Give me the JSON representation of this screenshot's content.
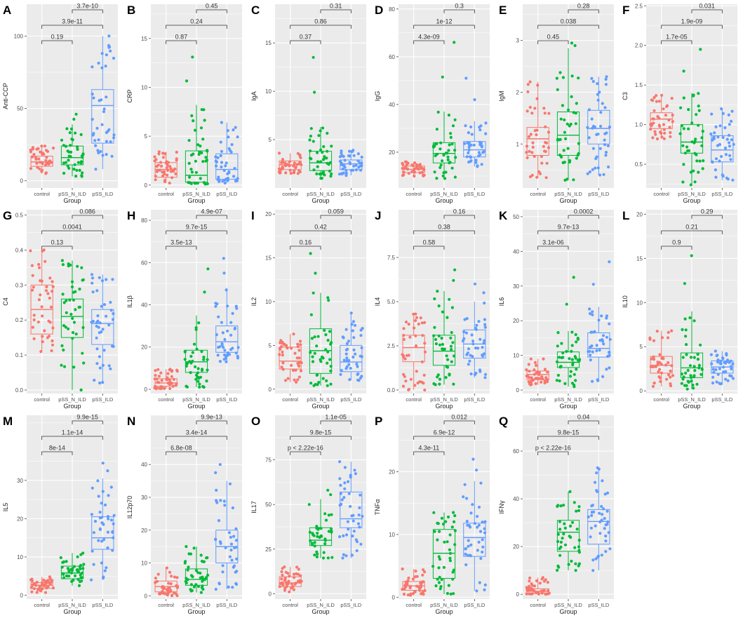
{
  "figure": {
    "x_title": "Group"
  },
  "colors": {
    "control": "#F8766D",
    "pSS_N_ILD": "#00BA38",
    "pSS_ILD": "#619CFF",
    "panel_bg": "#EBEBEB",
    "grid": "#FFFFFF",
    "bracket": "#333333"
  },
  "chart_data": [
    {
      "type": "box",
      "panel": "A",
      "ylabel": "Anti-CCP",
      "categories": [
        "control",
        "pSS_N_ILD",
        "pSS_ILD"
      ],
      "ylim": [
        -5,
        122
      ],
      "yticks": [
        0,
        50,
        100
      ],
      "boxes": [
        {
          "q1": 10,
          "median": 13,
          "q3": 17,
          "lo": 5,
          "hi": 24,
          "min": 5,
          "max": 24
        },
        {
          "q1": 11,
          "median": 16,
          "q3": 24,
          "lo": 3,
          "hi": 39,
          "min": 3,
          "max": 46
        },
        {
          "q1": 26,
          "median": 52,
          "q3": 63,
          "lo": 8,
          "hi": 100,
          "min": 8,
          "max": 100
        }
      ],
      "comparisons": [
        {
          "g1": 0,
          "g2": 1,
          "p": "0.19"
        },
        {
          "g1": 0,
          "g2": 2,
          "p": "3.9e-11"
        },
        {
          "g1": 1,
          "g2": 2,
          "p": "3.7e-10"
        }
      ]
    },
    {
      "type": "box",
      "panel": "B",
      "ylabel": "CRP",
      "categories": [
        "control",
        "pSS_N_ILD",
        "pSS_ILD"
      ],
      "ylim": [
        -0.3,
        18.5
      ],
      "yticks": [
        0,
        5,
        10,
        15
      ],
      "boxes": [
        {
          "q1": 0.8,
          "median": 1.6,
          "q3": 2.3,
          "lo": 0.2,
          "hi": 3.4,
          "min": 0.2,
          "max": 3.4
        },
        {
          "q1": 0.3,
          "median": 1.0,
          "q3": 3.5,
          "lo": 0.1,
          "hi": 8.2,
          "min": 0.1,
          "max": 13.1
        },
        {
          "q1": 0.6,
          "median": 1.6,
          "q3": 3.2,
          "lo": 0.2,
          "hi": 6.4,
          "min": 0.2,
          "max": 6.4
        }
      ],
      "comparisons": [
        {
          "g1": 0,
          "g2": 1,
          "p": "0.87"
        },
        {
          "g1": 0,
          "g2": 2,
          "p": "0.24"
        },
        {
          "g1": 1,
          "g2": 2,
          "p": "0.45"
        }
      ]
    },
    {
      "type": "box",
      "panel": "C",
      "ylabel": "IgA",
      "categories": [
        "control",
        "pSS_N_ILD",
        "pSS_ILD"
      ],
      "ylim": [
        0,
        19
      ],
      "yticks": [
        5,
        10,
        15
      ],
      "boxes": [
        {
          "q1": 1.9,
          "median": 2.4,
          "q3": 2.8,
          "lo": 1.5,
          "hi": 3.6,
          "min": 1.5,
          "max": 3.6
        },
        {
          "q1": 1.8,
          "median": 2.6,
          "q3": 3.8,
          "lo": 1.0,
          "hi": 6.3,
          "min": 1.0,
          "max": 13.5
        },
        {
          "q1": 1.9,
          "median": 2.5,
          "q3": 2.9,
          "lo": 1.3,
          "hi": 3.9,
          "min": 1.3,
          "max": 3.9
        }
      ],
      "comparisons": [
        {
          "g1": 0,
          "g2": 1,
          "p": "0.37"
        },
        {
          "g1": 0,
          "g2": 2,
          "p": "0.86"
        },
        {
          "g1": 1,
          "g2": 2,
          "p": "0.31"
        }
      ]
    },
    {
      "type": "box",
      "panel": "D",
      "ylabel": "IgG",
      "categories": [
        "control",
        "pSS_N_ILD",
        "pSS_ILD"
      ],
      "ylim": [
        5,
        82
      ],
      "yticks": [
        20,
        40,
        60,
        80
      ],
      "boxes": [
        {
          "q1": 11.5,
          "median": 12.8,
          "q3": 14.2,
          "lo": 10,
          "hi": 16,
          "min": 10,
          "max": 16
        },
        {
          "q1": 15.5,
          "median": 19.5,
          "q3": 24,
          "lo": 9,
          "hi": 37,
          "min": 9,
          "max": 66
        },
        {
          "q1": 18,
          "median": 21,
          "q3": 24.5,
          "lo": 14,
          "hi": 33,
          "min": 14,
          "max": 51
        }
      ],
      "comparisons": [
        {
          "g1": 0,
          "g2": 1,
          "p": "4.3e-09"
        },
        {
          "g1": 0,
          "g2": 2,
          "p": "1e-12"
        },
        {
          "g1": 1,
          "g2": 2,
          "p": "0.3"
        }
      ]
    },
    {
      "type": "box",
      "panel": "E",
      "ylabel": "IgM",
      "categories": [
        "control",
        "pSS_N_ILD",
        "pSS_ILD"
      ],
      "ylim": [
        0.15,
        3.7
      ],
      "yticks": [
        1,
        2,
        3
      ],
      "boxes": [
        {
          "q1": 0.78,
          "median": 1.1,
          "q3": 1.32,
          "lo": 0.35,
          "hi": 2.2,
          "min": 0.35,
          "max": 2.2
        },
        {
          "q1": 0.78,
          "median": 1.17,
          "q3": 1.62,
          "lo": 0.3,
          "hi": 2.85,
          "min": 0.3,
          "max": 2.95
        },
        {
          "q1": 1.0,
          "median": 1.3,
          "q3": 1.65,
          "lo": 0.4,
          "hi": 2.3,
          "min": 0.4,
          "max": 2.3
        }
      ],
      "comparisons": [
        {
          "g1": 0,
          "g2": 1,
          "p": "0.45"
        },
        {
          "g1": 0,
          "g2": 2,
          "p": "0.038"
        },
        {
          "g1": 1,
          "g2": 2,
          "p": "0.28"
        }
      ]
    },
    {
      "type": "box",
      "panel": "F",
      "ylabel": "C3",
      "categories": [
        "control",
        "pSS_N_ILD",
        "pSS_ILD"
      ],
      "ylim": [
        0.2,
        2.52
      ],
      "yticks": [
        0.5,
        1.0,
        1.5,
        2.0,
        2.5
      ],
      "boxes": [
        {
          "q1": 0.95,
          "median": 1.07,
          "q3": 1.15,
          "lo": 0.82,
          "hi": 1.37,
          "min": 0.82,
          "max": 1.37
        },
        {
          "q1": 0.64,
          "median": 0.78,
          "q3": 1.0,
          "lo": 0.24,
          "hi": 1.4,
          "min": 0.24,
          "max": 1.95
        },
        {
          "q1": 0.53,
          "median": 0.68,
          "q3": 0.86,
          "lo": 0.3,
          "hi": 1.2,
          "min": 0.3,
          "max": 1.2
        }
      ],
      "comparisons": [
        {
          "g1": 0,
          "g2": 1,
          "p": "1.7e-05"
        },
        {
          "g1": 0,
          "g2": 2,
          "p": "1.9e-09"
        },
        {
          "g1": 1,
          "g2": 2,
          "p": "0.031"
        }
      ]
    },
    {
      "type": "box",
      "panel": "G",
      "ylabel": "C4",
      "categories": [
        "control",
        "pSS_N_ILD",
        "pSS_ILD"
      ],
      "ylim": [
        -0.01,
        0.515
      ],
      "yticks": [
        0.0,
        0.1,
        0.2,
        0.3,
        0.4,
        0.5
      ],
      "boxes": [
        {
          "q1": 0.16,
          "median": 0.23,
          "q3": 0.3,
          "lo": 0.11,
          "hi": 0.4,
          "min": 0.11,
          "max": 0.4
        },
        {
          "q1": 0.15,
          "median": 0.21,
          "q3": 0.26,
          "lo": 0.0,
          "hi": 0.37,
          "min": 0.0,
          "max": 0.37
        },
        {
          "q1": 0.13,
          "median": 0.19,
          "q3": 0.23,
          "lo": 0.02,
          "hi": 0.33,
          "min": 0.02,
          "max": 0.33
        }
      ],
      "comparisons": [
        {
          "g1": 0,
          "g2": 1,
          "p": "0.13"
        },
        {
          "g1": 0,
          "g2": 2,
          "p": "0.0041"
        },
        {
          "g1": 1,
          "g2": 2,
          "p": "0.086"
        }
      ]
    },
    {
      "type": "box",
      "panel": "H",
      "ylabel": "IL1β",
      "categories": [
        "control",
        "pSS_N_ILD",
        "pSS_ILD"
      ],
      "ylim": [
        -2,
        85
      ],
      "yticks": [
        0,
        20,
        40,
        60,
        80
      ],
      "boxes": [
        {
          "q1": 1.5,
          "median": 3.0,
          "q3": 5.0,
          "lo": 0.3,
          "hi": 9.5,
          "min": 0.3,
          "max": 9.5
        },
        {
          "q1": 8.0,
          "median": 13.0,
          "q3": 18.5,
          "lo": 1.0,
          "hi": 35,
          "min": 1.0,
          "max": 57
        },
        {
          "q1": 17.5,
          "median": 22.5,
          "q3": 30,
          "lo": 13,
          "hi": 48,
          "min": 13,
          "max": 62
        }
      ],
      "comparisons": [
        {
          "g1": 0,
          "g2": 1,
          "p": "3.5e-13"
        },
        {
          "g1": 0,
          "g2": 2,
          "p": "9.7e-15"
        },
        {
          "g1": 1,
          "g2": 2,
          "p": "4.9e-07"
        }
      ]
    },
    {
      "type": "box",
      "panel": "I",
      "ylabel": "IL2",
      "categories": [
        "control",
        "pSS_N_ILD",
        "pSS_ILD"
      ],
      "ylim": [
        -0.5,
        20.5
      ],
      "yticks": [
        0,
        5,
        10,
        15,
        20
      ],
      "boxes": [
        {
          "q1": 2.3,
          "median": 3.2,
          "q3": 4.8,
          "lo": 0.8,
          "hi": 6.3,
          "min": 0.8,
          "max": 6.3
        },
        {
          "q1": 1.8,
          "median": 4.4,
          "q3": 6.9,
          "lo": 0.4,
          "hi": 11.0,
          "min": 0.4,
          "max": 15.5
        },
        {
          "q1": 2.0,
          "median": 3.1,
          "q3": 5.0,
          "lo": 1.0,
          "hi": 8.7,
          "min": 1.0,
          "max": 8.7
        }
      ],
      "comparisons": [
        {
          "g1": 0,
          "g2": 1,
          "p": "0.16"
        },
        {
          "g1": 0,
          "g2": 2,
          "p": "0.42"
        },
        {
          "g1": 1,
          "g2": 2,
          "p": "0.059"
        }
      ]
    },
    {
      "type": "box",
      "panel": "J",
      "ylabel": "IL4",
      "categories": [
        "control",
        "pSS_N_ILD",
        "pSS_ILD"
      ],
      "ylim": [
        -0.2,
        10.2
      ],
      "yticks": [
        0.0,
        2.5,
        5.0,
        7.5
      ],
      "boxes": [
        {
          "q1": 1.6,
          "median": 2.4,
          "q3": 3.1,
          "lo": 0.0,
          "hi": 4.3,
          "min": 0.0,
          "max": 4.3
        },
        {
          "q1": 1.4,
          "median": 2.2,
          "q3": 3.1,
          "lo": 0.3,
          "hi": 5.6,
          "min": 0.3,
          "max": 6.8
        },
        {
          "q1": 1.8,
          "median": 2.6,
          "q3": 3.4,
          "lo": 0.7,
          "hi": 5.0,
          "min": 0.7,
          "max": 6.0
        }
      ],
      "comparisons": [
        {
          "g1": 0,
          "g2": 1,
          "p": "0.58"
        },
        {
          "g1": 0,
          "g2": 2,
          "p": "0.38"
        },
        {
          "g1": 1,
          "g2": 2,
          "p": "0.16"
        }
      ]
    },
    {
      "type": "box",
      "panel": "K",
      "ylabel": "IL6",
      "categories": [
        "control",
        "pSS_N_ILD",
        "pSS_ILD"
      ],
      "ylim": [
        -1,
        52
      ],
      "yticks": [
        0,
        10,
        20,
        30,
        40,
        50
      ],
      "boxes": [
        {
          "q1": 3.0,
          "median": 4.5,
          "q3": 5.5,
          "lo": 1.5,
          "hi": 9.0,
          "min": 1.5,
          "max": 9.0
        },
        {
          "q1": 6.5,
          "median": 8.0,
          "q3": 11.0,
          "lo": 1.0,
          "hi": 17.0,
          "min": 1.0,
          "max": 32.5
        },
        {
          "q1": 9.5,
          "median": 12.0,
          "q3": 16.5,
          "lo": 2.5,
          "hi": 24.0,
          "min": 2.5,
          "max": 37.0
        }
      ],
      "comparisons": [
        {
          "g1": 0,
          "g2": 1,
          "p": "3.1e-06"
        },
        {
          "g1": 0,
          "g2": 2,
          "p": "9.7e-13"
        },
        {
          "g1": 1,
          "g2": 2,
          "p": "0.0002"
        }
      ]
    },
    {
      "type": "box",
      "panel": "L",
      "ylabel": "IL10",
      "categories": [
        "control",
        "pSS_N_ILD",
        "pSS_ILD"
      ],
      "ylim": [
        -0.3,
        20.5
      ],
      "yticks": [
        0,
        5,
        10,
        15,
        20
      ],
      "boxes": [
        {
          "q1": 2.0,
          "median": 2.9,
          "q3": 3.9,
          "lo": 0.5,
          "hi": 6.8,
          "min": 0.5,
          "max": 6.8
        },
        {
          "q1": 1.5,
          "median": 2.6,
          "q3": 4.3,
          "lo": 0.2,
          "hi": 9.0,
          "min": 0.2,
          "max": 15.3
        },
        {
          "q1": 2.0,
          "median": 2.7,
          "q3": 3.4,
          "lo": 0.8,
          "hi": 4.5,
          "min": 0.8,
          "max": 4.5
        }
      ],
      "comparisons": [
        {
          "g1": 0,
          "g2": 1,
          "p": "0.9"
        },
        {
          "g1": 0,
          "g2": 2,
          "p": "0.21"
        },
        {
          "g1": 1,
          "g2": 2,
          "p": "0.29"
        }
      ]
    },
    {
      "type": "box",
      "panel": "M",
      "ylabel": "IL5",
      "categories": [
        "control",
        "pSS_N_ILD",
        "pSS_ILD"
      ],
      "ylim": [
        -1,
        47
      ],
      "yticks": [
        0,
        10,
        20,
        30
      ],
      "boxes": [
        {
          "q1": 1.8,
          "median": 2.6,
          "q3": 3.3,
          "lo": 0.7,
          "hi": 4.8,
          "min": 0.7,
          "max": 4.8
        },
        {
          "q1": 4.3,
          "median": 5.8,
          "q3": 7.6,
          "lo": 2.5,
          "hi": 11.0,
          "min": 2.5,
          "max": 11.0
        },
        {
          "q1": 12.0,
          "median": 15.0,
          "q3": 20.5,
          "lo": 4.0,
          "hi": 30.5,
          "min": 4.0,
          "max": 34.5
        }
      ],
      "comparisons": [
        {
          "g1": 0,
          "g2": 1,
          "p": "8e-14"
        },
        {
          "g1": 0,
          "g2": 2,
          "p": "1.1e-14"
        },
        {
          "g1": 1,
          "g2": 2,
          "p": "9.9e-15"
        }
      ]
    },
    {
      "type": "box",
      "panel": "N",
      "ylabel": "IL12p70",
      "categories": [
        "control",
        "pSS_N_ILD",
        "pSS_ILD"
      ],
      "ylim": [
        -1,
        55
      ],
      "yticks": [
        0,
        10,
        20,
        30,
        40
      ],
      "boxes": [
        {
          "q1": 1.2,
          "median": 2.8,
          "q3": 4.5,
          "lo": 0.0,
          "hi": 8.5,
          "min": 0.0,
          "max": 8.5
        },
        {
          "q1": 3.2,
          "median": 5.0,
          "q3": 8.2,
          "lo": 1.0,
          "hi": 15.0,
          "min": 1.0,
          "max": 15.0
        },
        {
          "q1": 10.0,
          "median": 15.0,
          "q3": 20.0,
          "lo": 2.0,
          "hi": 35.0,
          "min": 2.0,
          "max": 40.0
        }
      ],
      "comparisons": [
        {
          "g1": 0,
          "g2": 1,
          "p": "6.8e-08"
        },
        {
          "g1": 0,
          "g2": 2,
          "p": "3.4e-14"
        },
        {
          "g1": 1,
          "g2": 2,
          "p": "9.9e-13"
        }
      ]
    },
    {
      "type": "box",
      "panel": "O",
      "ylabel": "IL17",
      "categories": [
        "control",
        "pSS_N_ILD",
        "pSS_ILD"
      ],
      "ylim": [
        -3,
        100
      ],
      "yticks": [
        0,
        25,
        50,
        75
      ],
      "boxes": [
        {
          "q1": 4.0,
          "median": 6.0,
          "q3": 9.5,
          "lo": 1.0,
          "hi": 15.0,
          "min": 1.0,
          "max": 15.0
        },
        {
          "q1": 27.0,
          "median": 30.0,
          "q3": 37.0,
          "lo": 20.0,
          "hi": 53.0,
          "min": 20.0,
          "max": 58.0
        },
        {
          "q1": 37.0,
          "median": 42.0,
          "q3": 57.0,
          "lo": 20.0,
          "hi": 74.0,
          "min": 20.0,
          "max": 74.0
        }
      ],
      "comparisons": [
        {
          "g1": 0,
          "g2": 1,
          "p": "p < 2.22e-16"
        },
        {
          "g1": 0,
          "g2": 2,
          "p": "9.8e-15"
        },
        {
          "g1": 1,
          "g2": 2,
          "p": "1.1e-05"
        }
      ]
    },
    {
      "type": "box",
      "panel": "P",
      "ylabel": "TNFα",
      "categories": [
        "control",
        "pSS_N_ILD",
        "pSS_ILD"
      ],
      "ylim": [
        -0.3,
        29
      ],
      "yticks": [
        0,
        10,
        20
      ],
      "boxes": [
        {
          "q1": 1.1,
          "median": 1.8,
          "q3": 2.5,
          "lo": 0.3,
          "hi": 4.5,
          "min": 0.3,
          "max": 4.5
        },
        {
          "q1": 3.0,
          "median": 7.0,
          "q3": 10.8,
          "lo": 0.5,
          "hi": 13.5,
          "min": 0.5,
          "max": 13.5
        },
        {
          "q1": 6.5,
          "median": 9.5,
          "q3": 11.8,
          "lo": 1.0,
          "hi": 18.5,
          "min": 1.0,
          "max": 22.0
        }
      ],
      "comparisons": [
        {
          "g1": 0,
          "g2": 1,
          "p": "4.3e-11"
        },
        {
          "g1": 0,
          "g2": 2,
          "p": "6.9e-12"
        },
        {
          "g1": 1,
          "g2": 2,
          "p": "0.012"
        }
      ]
    },
    {
      "type": "box",
      "panel": "Q",
      "ylabel": "IFNγ",
      "categories": [
        "control",
        "pSS_N_ILD",
        "pSS_ILD"
      ],
      "ylim": [
        -2,
        75
      ],
      "yticks": [
        0,
        20,
        40,
        60
      ],
      "boxes": [
        {
          "q1": 0.5,
          "median": 1.3,
          "q3": 2.3,
          "lo": 0.0,
          "hi": 7.0,
          "min": 0.0,
          "max": 7.0
        },
        {
          "q1": 18.0,
          "median": 26.0,
          "q3": 31.0,
          "lo": 10.0,
          "hi": 43.0,
          "min": 10.0,
          "max": 43.0
        },
        {
          "q1": 21.0,
          "median": 30.5,
          "q3": 35.5,
          "lo": 10.0,
          "hi": 53.0,
          "min": 10.0,
          "max": 53.0
        }
      ],
      "comparisons": [
        {
          "g1": 0,
          "g2": 1,
          "p": "p < 2.22e-16"
        },
        {
          "g1": 0,
          "g2": 2,
          "p": "9.8e-15"
        },
        {
          "g1": 1,
          "g2": 2,
          "p": "0.04"
        }
      ]
    }
  ]
}
